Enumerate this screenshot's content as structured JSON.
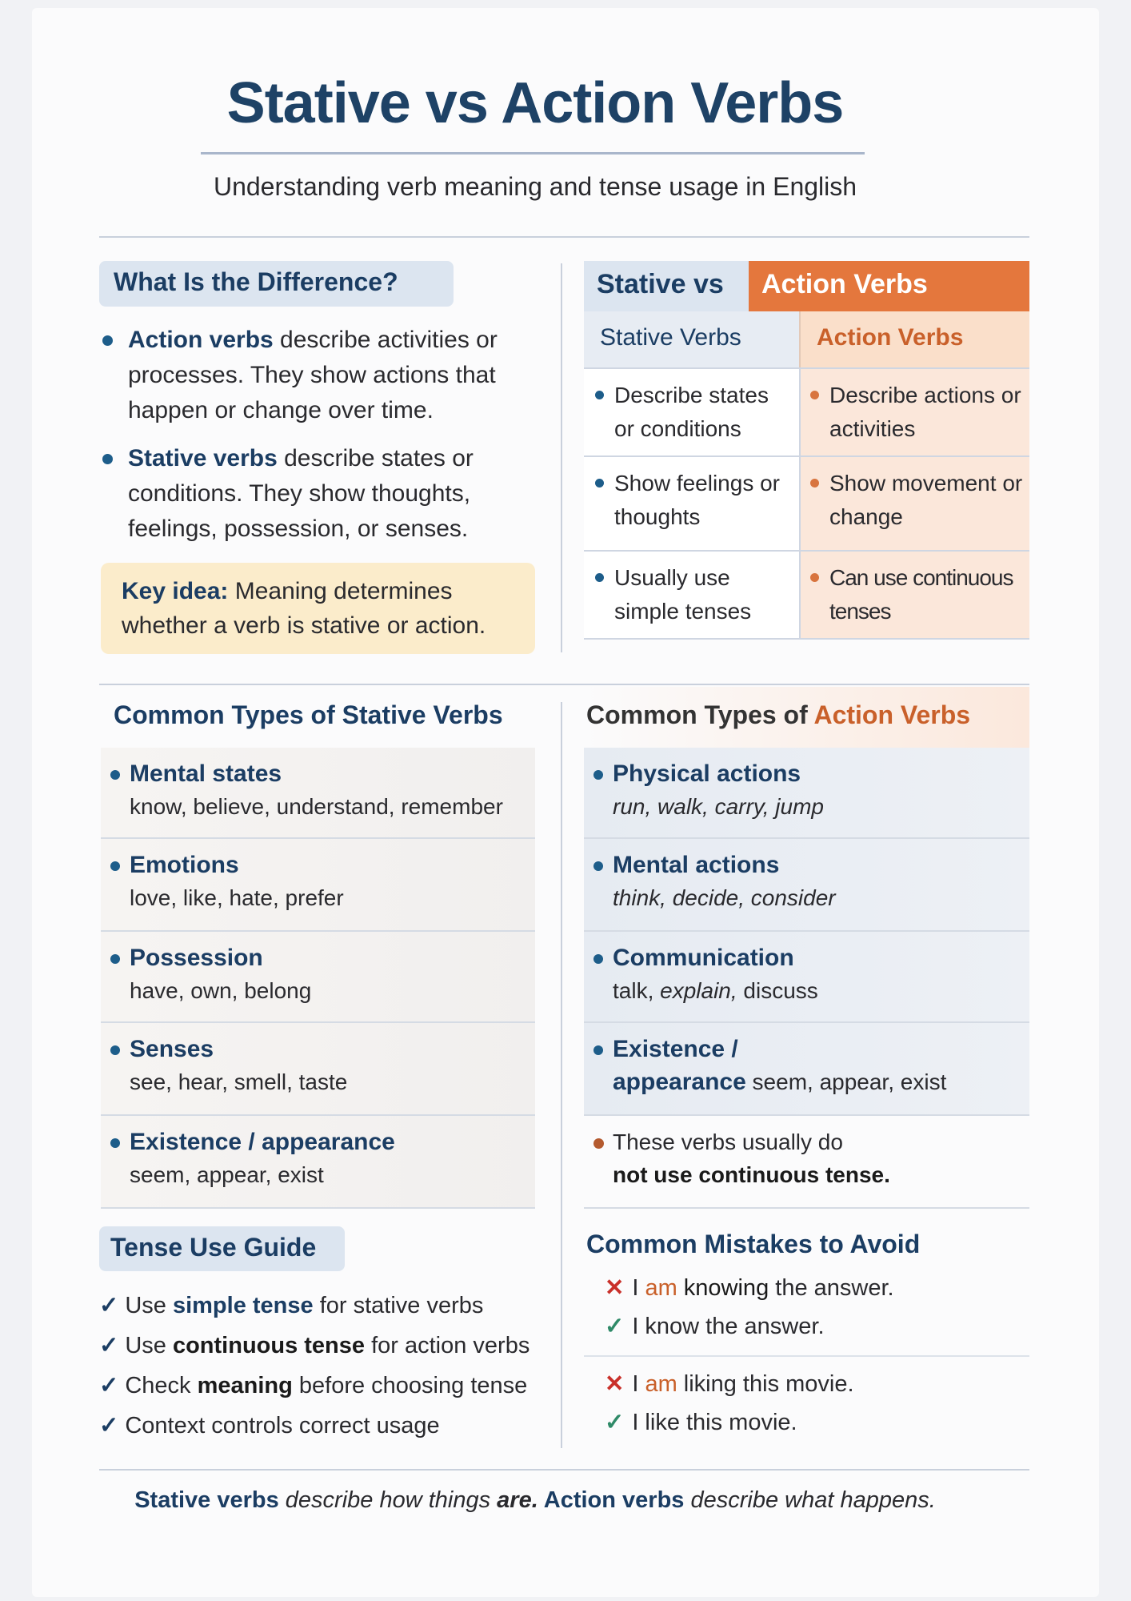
{
  "header": {
    "title": "Stative vs Action Verbs",
    "subtitle": "Understanding verb meaning and tense usage in English"
  },
  "difference": {
    "heading": "What Is the Difference?",
    "bullets": [
      {
        "term": "Action verbs",
        "text": " describe activities or processes. They show actions that happen or change over time."
      },
      {
        "term": "Stative verbs",
        "text": " describe states or conditions. They show thoughts, feelings, possession, or senses."
      }
    ],
    "key_label": "Key idea:",
    "key_text": " Meaning determines whether a verb is stative or action."
  },
  "comparison": {
    "title_left": "Stative vs",
    "title_right": "Action Verbs",
    "col_stative": "Stative Verbs",
    "col_action": "Action Verbs",
    "rows": [
      {
        "stative": "Describe states or conditions",
        "action": "Describe actions or activities"
      },
      {
        "stative": "Show feelings or thoughts",
        "action": "Show movement or change"
      },
      {
        "stative": "Usually use simple tenses",
        "action": "Can use continuous tenses"
      }
    ]
  },
  "stative_types": {
    "heading": "Common Types of Stative Verbs",
    "items": [
      {
        "type": "Mental states",
        "examples": "know, believe, understand, remember"
      },
      {
        "type": "Emotions",
        "examples": "love, like, hate, prefer"
      },
      {
        "type": "Possession",
        "examples": "have, own, belong"
      },
      {
        "type": "Senses",
        "examples": "see, hear, smell, taste"
      },
      {
        "type": "Existence / appearance",
        "examples": "seem, appear, exist"
      }
    ]
  },
  "action_types": {
    "heading_prefix": "Common Types of ",
    "heading_accent": "Action Verbs",
    "items": [
      {
        "type": "Physical actions",
        "examples": "run, walk, carry, jump"
      },
      {
        "type": "Mental actions",
        "examples": "think, decide, consider"
      },
      {
        "type": "Communication",
        "examples_a": "talk, ",
        "examples_b": "explain,",
        "examples_c": " discuss"
      },
      {
        "type_a": "Existence /",
        "type_b": "appearance",
        "examples": " seem, appear, exist"
      }
    ],
    "note_a": "These verbs usually do",
    "note_b": "not use continuous tense."
  },
  "tense_guide": {
    "heading": "Tense Use Guide",
    "items": [
      {
        "a": "Use ",
        "b": "simple tense",
        "c": " for stative verbs"
      },
      {
        "a": "Use ",
        "b": "continuous tense",
        "c": " for action verbs"
      },
      {
        "a": "Check ",
        "b": "meaning",
        "c": " before choosing tense"
      },
      {
        "a": "Context controls correct usage",
        "b": "",
        "c": ""
      }
    ]
  },
  "mistakes": {
    "heading": "Common Mistakes to Avoid",
    "pairs": [
      {
        "wrong_a": "I ",
        "wrong_am": "am",
        "wrong_b": " knowing",
        "wrong_c": " the answer.",
        "right": "I know the answer."
      },
      {
        "wrong_a": "I ",
        "wrong_am": "am",
        "wrong_b": "",
        "wrong_c": " liking this movie.",
        "right": "I like this movie."
      }
    ]
  },
  "footer": {
    "a": "Stative verbs",
    "b": " describe how things ",
    "c": "are.",
    "d": " Action verbs",
    "e": " describe what happens."
  },
  "colors": {
    "navy": "#1b3d63",
    "orange": "#e4773d",
    "wrong": "#c9302a",
    "right": "#2f8a68",
    "key_bg": "#fbeccb"
  },
  "icons": {
    "bullet": "dot",
    "check": "check-icon",
    "cross": "x-icon"
  }
}
